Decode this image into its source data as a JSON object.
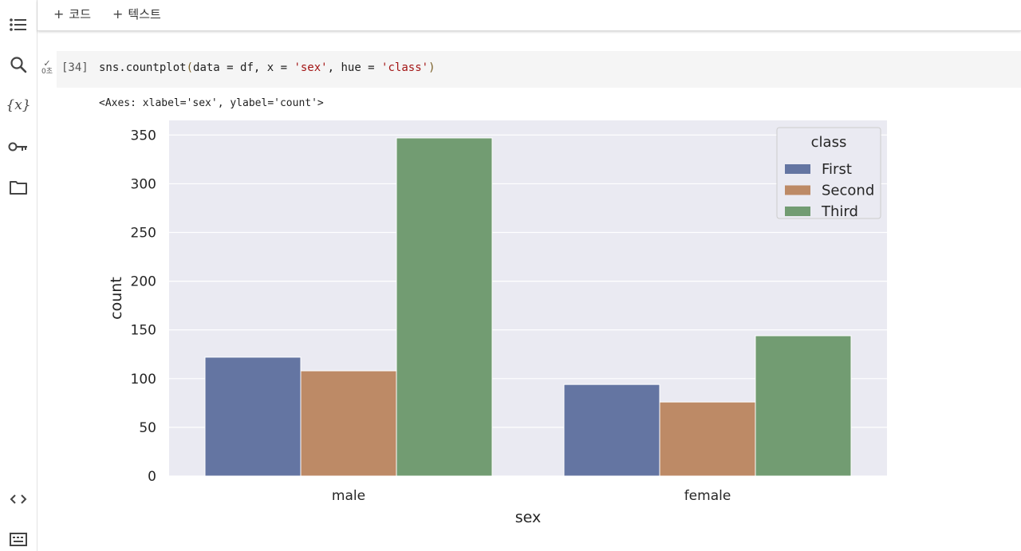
{
  "rail": {
    "icons": [
      "table-of-contents-icon",
      "search-icon",
      "variables-icon",
      "secrets-key-icon",
      "files-folder-icon",
      "code-snippets-icon",
      "command-palette-icon"
    ],
    "variables_glyph": "{x}"
  },
  "toolbar": {
    "add_code_label": "코드",
    "add_text_label": "텍스트",
    "plus": "+"
  },
  "cell": {
    "status_check": "✓",
    "status_time": "0초",
    "exec_count": "[34]",
    "code_prefix": "sns.countplot",
    "code_open": "(",
    "code_mid1": "data = df, x = ",
    "code_str1": "'sex'",
    "code_mid2": ", hue = ",
    "code_str2": "'class'",
    "code_close": ")",
    "output_text": "<Axes: xlabel='sex', ylabel='count'>"
  },
  "chart_data": {
    "type": "bar",
    "categories": [
      "male",
      "female"
    ],
    "series": [
      {
        "name": "First",
        "values": [
          122,
          94
        ],
        "color": "#6475a2"
      },
      {
        "name": "Second",
        "values": [
          108,
          76
        ],
        "color": "#bd8a66"
      },
      {
        "name": "Third",
        "values": [
          347,
          144
        ],
        "color": "#729c72"
      }
    ],
    "xlabel": "sex",
    "ylabel": "count",
    "ylim": [
      0,
      365
    ],
    "yticks": [
      0,
      50,
      100,
      150,
      200,
      250,
      300,
      350
    ],
    "legend_title": "class",
    "legend_position": "top-right",
    "grid": true,
    "background": "#eaeaf2"
  }
}
